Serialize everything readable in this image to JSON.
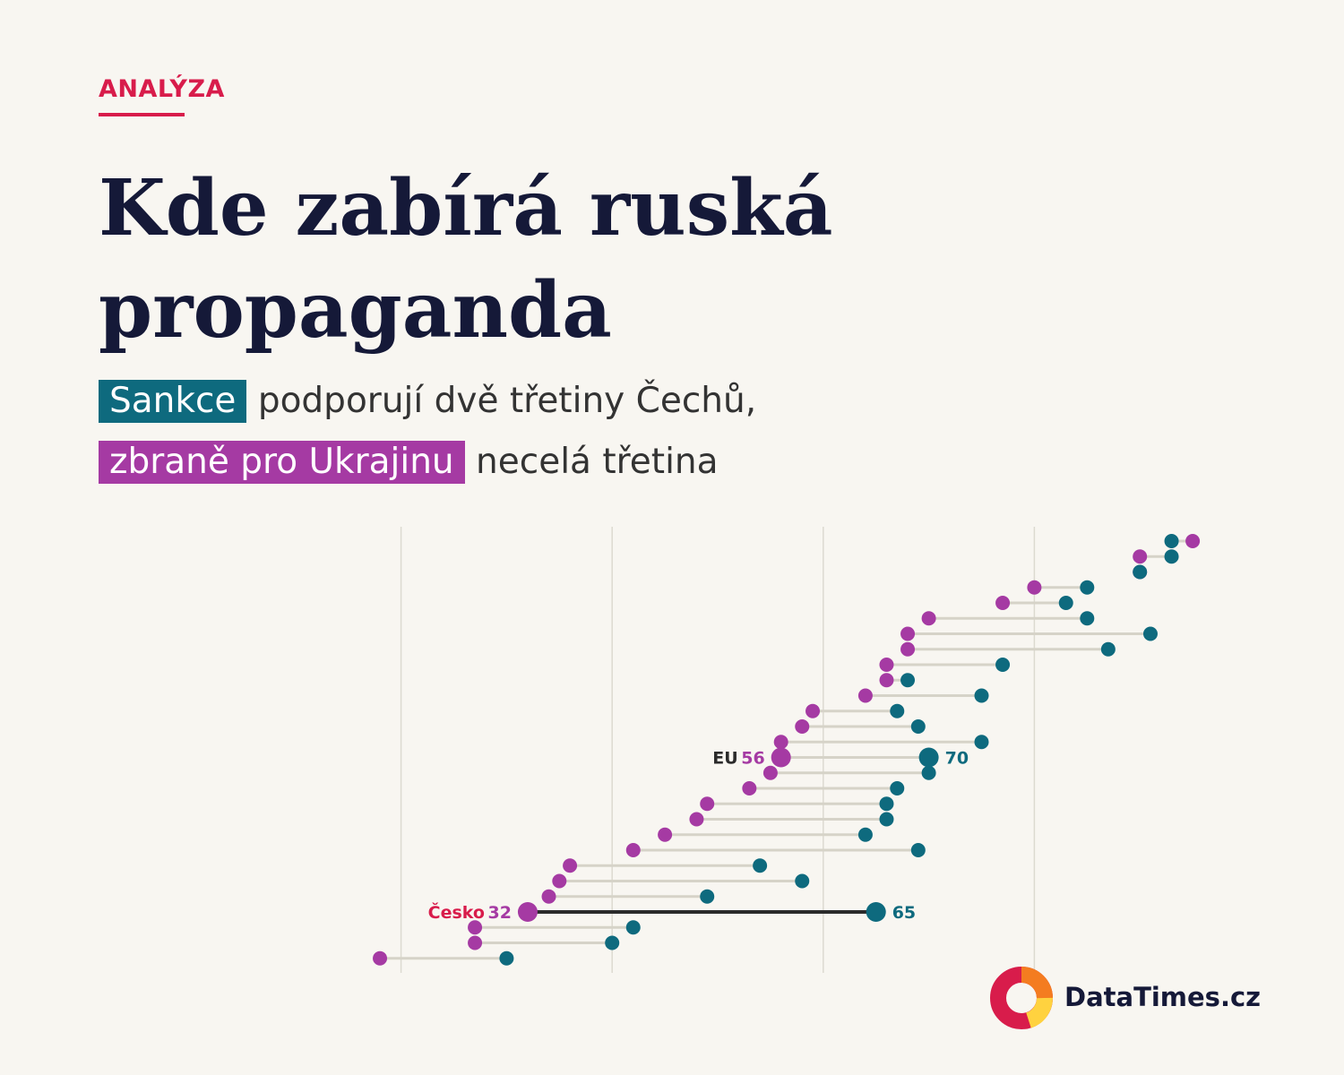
{
  "header": {
    "kicker": "ANALÝZA",
    "title": "Kde zabírá ruská propaganda",
    "subtitle_line1": {
      "tag": "Sankce",
      "rest": "podporují dvě třetiny Čechů,"
    },
    "subtitle_line2": {
      "tag": "zbraně pro Ukrajinu",
      "rest": "necelá třetina"
    }
  },
  "colors": {
    "weapons": "#a53aa3",
    "sanctions": "#0e6a7e",
    "accent": "#d81c4b",
    "connector": "#d6d3c8",
    "highlight_connector": "#2b2b2b",
    "grid": "#dcdad0"
  },
  "brand": {
    "name": "DataTimes.cz"
  },
  "chart_data": {
    "type": "dumbbell",
    "series": [
      {
        "name": "zbraně pro Ukrajinu",
        "color": "#a53aa3"
      },
      {
        "name": "Sankce",
        "color": "#0e6a7e"
      }
    ],
    "xlim": [
      0,
      100
    ],
    "grid_x": [
      20,
      40,
      60,
      80
    ],
    "rows": [
      {
        "label": "",
        "weapons": 95,
        "sanctions": 93
      },
      {
        "label": "",
        "weapons": 90,
        "sanctions": 93
      },
      {
        "label": "",
        "weapons": 90,
        "sanctions": 90
      },
      {
        "label": "",
        "weapons": 80,
        "sanctions": 85
      },
      {
        "label": "",
        "weapons": 77,
        "sanctions": 83
      },
      {
        "label": "",
        "weapons": 70,
        "sanctions": 85
      },
      {
        "label": "",
        "weapons": 68,
        "sanctions": 91
      },
      {
        "label": "",
        "weapons": 68,
        "sanctions": 87
      },
      {
        "label": "",
        "weapons": 66,
        "sanctions": 77
      },
      {
        "label": "",
        "weapons": 66,
        "sanctions": 68
      },
      {
        "label": "",
        "weapons": 64,
        "sanctions": 75
      },
      {
        "label": "",
        "weapons": 59,
        "sanctions": 67
      },
      {
        "label": "",
        "weapons": 58,
        "sanctions": 69
      },
      {
        "label": "",
        "weapons": 56,
        "sanctions": 75
      },
      {
        "label": "EU",
        "weapons": 56,
        "sanctions": 70,
        "highlight": "eu"
      },
      {
        "label": "",
        "weapons": 55,
        "sanctions": 70
      },
      {
        "label": "",
        "weapons": 53,
        "sanctions": 67
      },
      {
        "label": "",
        "weapons": 49,
        "sanctions": 66
      },
      {
        "label": "",
        "weapons": 48,
        "sanctions": 66
      },
      {
        "label": "",
        "weapons": 45,
        "sanctions": 64
      },
      {
        "label": "",
        "weapons": 42,
        "sanctions": 69
      },
      {
        "label": "",
        "weapons": 36,
        "sanctions": 54
      },
      {
        "label": "",
        "weapons": 35,
        "sanctions": 58
      },
      {
        "label": "",
        "weapons": 34,
        "sanctions": 49
      },
      {
        "label": "Česko",
        "weapons": 32,
        "sanctions": 65,
        "highlight": "cz"
      },
      {
        "label": "",
        "weapons": 27,
        "sanctions": 42
      },
      {
        "label": "",
        "weapons": 27,
        "sanctions": 40
      },
      {
        "label": "",
        "weapons": 18,
        "sanctions": 30
      }
    ]
  }
}
